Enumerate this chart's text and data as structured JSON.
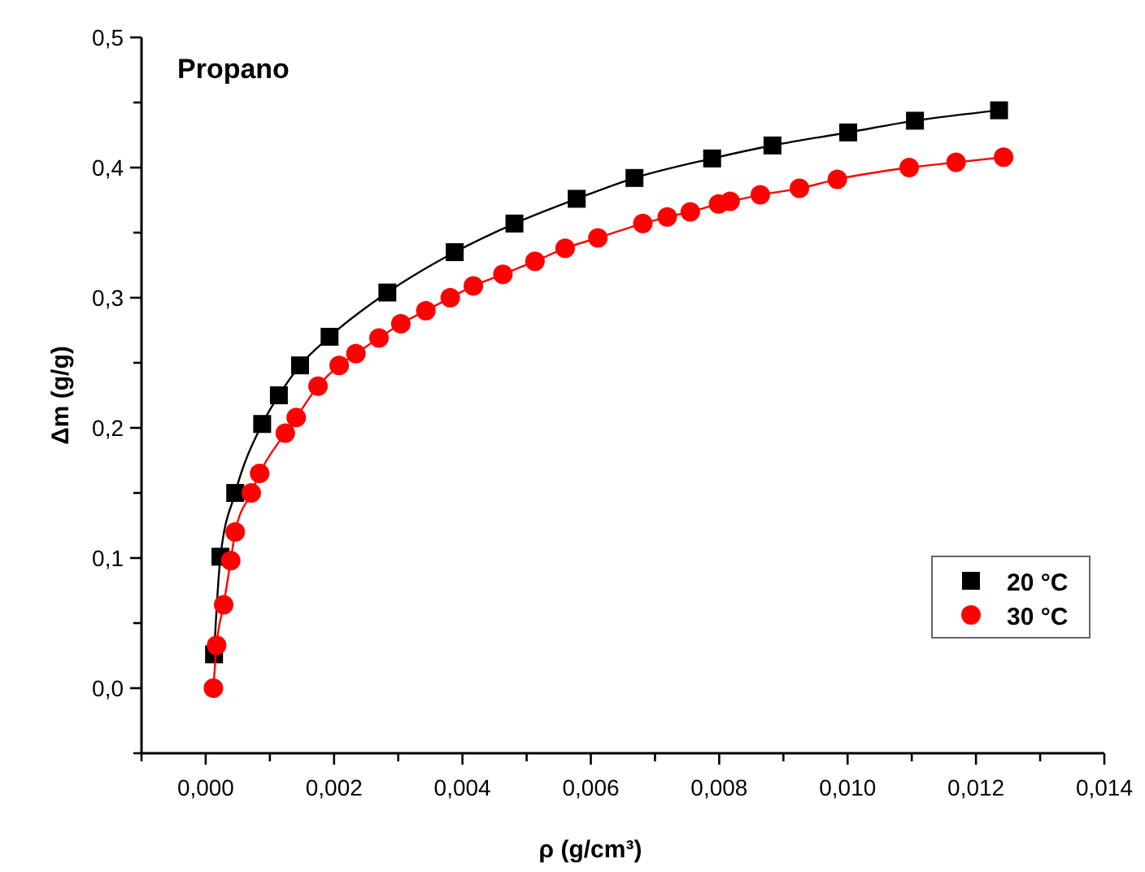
{
  "chart_data": {
    "type": "line",
    "title": "Propano",
    "xlabel": "ρ (g/cm³)",
    "ylabel": "Δm (g/g)",
    "xlim": [
      -0.001,
      0.014
    ],
    "xticks": [
      {
        "value": -0.001,
        "label": null
      },
      {
        "value": 0,
        "label": "0,000"
      },
      {
        "value": 0.001,
        "label": null
      },
      {
        "value": 0.002,
        "label": "0,002"
      },
      {
        "value": 0.003,
        "label": null
      },
      {
        "value": 0.004,
        "label": "0,004"
      },
      {
        "value": 0.005,
        "label": null
      },
      {
        "value": 0.006,
        "label": "0,006"
      },
      {
        "value": 0.007,
        "label": null
      },
      {
        "value": 0.008,
        "label": "0,008"
      },
      {
        "value": 0.009,
        "label": null
      },
      {
        "value": 0.01,
        "label": "0,010"
      },
      {
        "value": 0.011,
        "label": null
      },
      {
        "value": 0.012,
        "label": "0,012"
      },
      {
        "value": 0.013,
        "label": null
      },
      {
        "value": 0.014,
        "label": "0,014"
      }
    ],
    "ylim": [
      -0.05,
      0.5
    ],
    "yticks": [
      {
        "value": -0.05,
        "label": null
      },
      {
        "value": 0,
        "label": "0,0"
      },
      {
        "value": 0.05,
        "label": null
      },
      {
        "value": 0.1,
        "label": "0,1"
      },
      {
        "value": 0.15,
        "label": null
      },
      {
        "value": 0.2,
        "label": "0,2"
      },
      {
        "value": 0.25,
        "label": null
      },
      {
        "value": 0.3,
        "label": "0,3"
      },
      {
        "value": 0.35,
        "label": null
      },
      {
        "value": 0.4,
        "label": "0,4"
      },
      {
        "value": 0.45,
        "label": null
      },
      {
        "value": 0.5,
        "label": "0,5"
      }
    ],
    "grid": false,
    "legend": "bottom right",
    "line_style": "solid",
    "series": [
      {
        "name": "20 °C",
        "color": "#000000",
        "marker": "square",
        "x": [
          0.00013,
          0.00023,
          0.00046,
          0.00088,
          0.00114,
          0.00147,
          0.00193,
          0.00283,
          0.00388,
          0.00481,
          0.00578,
          0.00668,
          0.00789,
          0.00883,
          0.01001,
          0.01105,
          0.01236
        ],
        "values": [
          0.026,
          0.101,
          0.15,
          0.203,
          0.225,
          0.248,
          0.27,
          0.304,
          0.335,
          0.357,
          0.376,
          0.392,
          0.407,
          0.417,
          0.427,
          0.436,
          0.444
        ]
      },
      {
        "name": "30 °C",
        "color": "#ff0000",
        "marker": "circle",
        "x": [
          0.00012,
          0.00017,
          0.00028,
          0.00039,
          0.00046,
          0.00071,
          0.00084,
          0.00124,
          0.00141,
          0.00175,
          0.00208,
          0.00234,
          0.0027,
          0.00304,
          0.00343,
          0.00381,
          0.00417,
          0.00463,
          0.00513,
          0.0056,
          0.00611,
          0.00681,
          0.00719,
          0.00755,
          0.00799,
          0.00817,
          0.00864,
          0.00925,
          0.00984,
          0.01096,
          0.01169,
          0.01243
        ],
        "values": [
          0.0,
          0.033,
          0.064,
          0.098,
          0.12,
          0.15,
          0.165,
          0.196,
          0.208,
          0.232,
          0.248,
          0.257,
          0.269,
          0.28,
          0.29,
          0.3,
          0.309,
          0.318,
          0.328,
          0.338,
          0.346,
          0.357,
          0.362,
          0.366,
          0.372,
          0.374,
          0.379,
          0.384,
          0.391,
          0.4,
          0.404,
          0.408
        ]
      }
    ]
  }
}
